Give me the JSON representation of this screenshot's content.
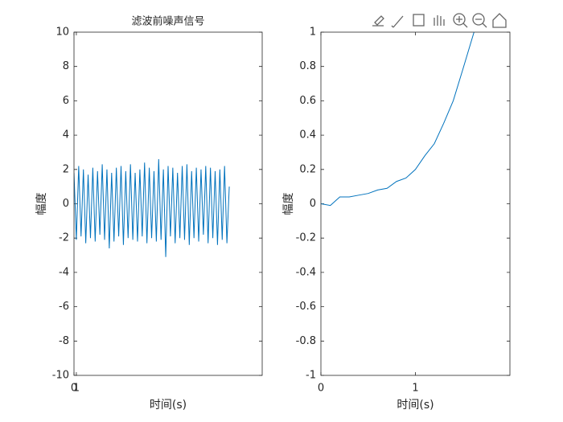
{
  "chart_data": [
    {
      "type": "line",
      "title": "滤波前噪声信号",
      "xlabel": "时间(s)",
      "ylabel": "幅度",
      "xlim": [
        0,
        80
      ],
      "xticks": [
        0,
        1
      ],
      "ylim": [
        -10,
        10
      ],
      "yticks": [
        -10,
        -8,
        -6,
        -4,
        -2,
        0,
        2,
        4,
        6,
        8,
        10
      ],
      "series": [
        {
          "color": "#0072bd",
          "x": [
            0,
            1,
            2,
            3,
            4,
            5,
            6,
            7,
            8,
            9,
            10,
            11,
            12,
            13,
            14,
            15,
            16,
            17,
            18,
            19,
            20,
            21,
            22,
            23,
            24,
            25,
            26,
            27,
            28,
            29,
            30,
            31,
            32,
            33,
            34,
            35,
            36,
            37,
            38,
            39,
            40,
            41,
            42,
            43,
            44,
            45,
            46,
            47,
            48,
            49,
            50,
            51,
            52,
            53,
            54,
            55,
            56,
            57,
            58,
            59,
            60,
            61,
            62,
            63,
            64,
            65,
            66
          ],
          "values": [
            1.8,
            -2.1,
            2.2,
            -1.9,
            2.0,
            -2.3,
            1.7,
            -2.0,
            2.1,
            -2.2,
            1.9,
            -1.8,
            2.3,
            -2.1,
            2.0,
            -2.6,
            1.8,
            -2.2,
            2.1,
            -1.9,
            2.2,
            -2.4,
            1.9,
            -2.0,
            2.3,
            -2.1,
            1.8,
            -2.2,
            2.0,
            -1.9,
            2.4,
            -2.3,
            2.1,
            -2.0,
            1.9,
            -2.2,
            2.6,
            -2.1,
            2.0,
            -3.1,
            2.2,
            -1.9,
            2.1,
            -2.3,
            1.8,
            -2.0,
            2.2,
            -2.1,
            2.3,
            -2.4,
            1.9,
            -2.0,
            2.1,
            -2.2,
            2.0,
            -1.8,
            2.2,
            -2.3,
            2.1,
            -2.0,
            1.9,
            -2.4,
            2.0,
            -2.1,
            2.2,
            -2.3,
            1.0
          ]
        }
      ]
    },
    {
      "type": "line",
      "xlabel": "时间(s)",
      "ylabel": "幅度",
      "xlim": [
        0,
        2
      ],
      "xticks": [
        0,
        1
      ],
      "ylim": [
        -1,
        1
      ],
      "yticks": [
        -1,
        -0.8,
        -0.6,
        -0.4,
        -0.2,
        0,
        0.2,
        0.4,
        0.6,
        0.8,
        1
      ],
      "series": [
        {
          "color": "#0072bd",
          "x": [
            0,
            0.1,
            0.2,
            0.3,
            0.4,
            0.5,
            0.6,
            0.7,
            0.8,
            0.9,
            1.0,
            1.1,
            1.2,
            1.3,
            1.4,
            1.5,
            1.62
          ],
          "values": [
            0,
            -0.01,
            0.04,
            0.04,
            0.05,
            0.06,
            0.08,
            0.09,
            0.13,
            0.15,
            0.2,
            0.28,
            0.35,
            0.47,
            0.6,
            0.78,
            1.0
          ]
        }
      ]
    }
  ]
}
